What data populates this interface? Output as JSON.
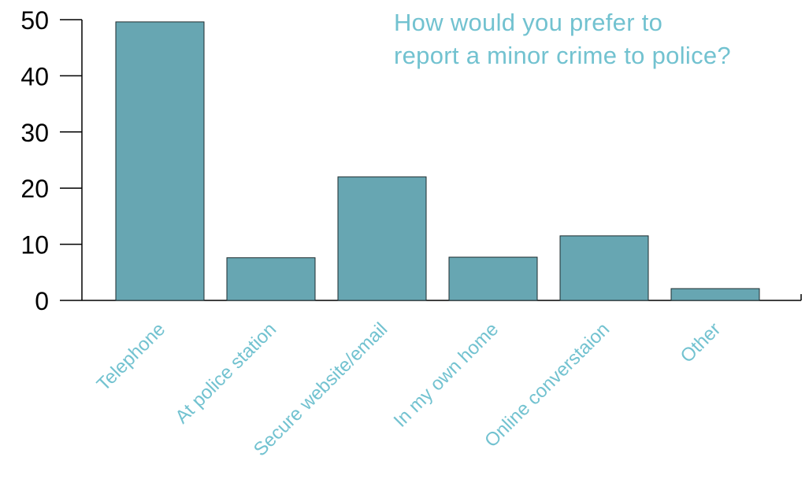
{
  "chart_data": {
    "type": "bar",
    "title_lines": [
      "How would you prefer to",
      "report a minor crime to police?"
    ],
    "categories": [
      "Telephone",
      "At police station",
      "Secure website/email",
      "In my own home",
      "Online converstaion",
      "Other"
    ],
    "values": [
      49.6,
      7.6,
      22.0,
      7.7,
      11.5,
      2.1
    ],
    "ylim": [
      0,
      50
    ],
    "yticks": [
      "0",
      "10",
      "20",
      "30",
      "40",
      "50"
    ],
    "grid": false,
    "legend": "none"
  },
  "colors": {
    "bar_fill": "#67a6b2",
    "bar_stroke": "#1d2b2e",
    "title": "#72c2d0",
    "category_label": "#72c2d0",
    "axis": "#000000",
    "tick_label": "#000000"
  }
}
